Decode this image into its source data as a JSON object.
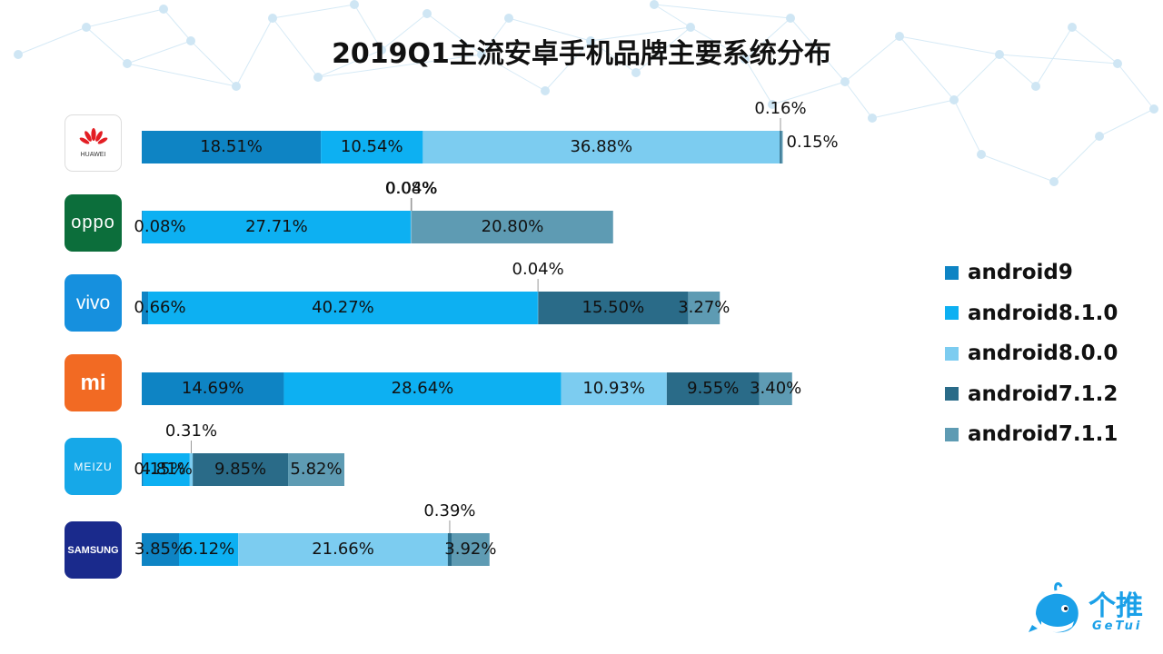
{
  "title": "2019Q1主流安卓手机品牌主要系统分布",
  "colors": {
    "android9": "#0e84c4",
    "android8.1.0": "#0db0f2",
    "android8.0.0": "#7cccf0",
    "android7.1.2": "#2a6b88",
    "android7.1.1": "#5e9bb3"
  },
  "brands": [
    {
      "name": "HUAWEI",
      "logo_text": "HUAWEI",
      "logo_bg": "#ffffff",
      "icon": "huawei-logo"
    },
    {
      "name": "OPPO",
      "logo_text": "oppo",
      "logo_bg": "#0c6e3b",
      "icon": "oppo-logo"
    },
    {
      "name": "VIVO",
      "logo_text": "vivo",
      "logo_bg": "#1690de",
      "icon": "vivo-logo"
    },
    {
      "name": "MI",
      "logo_text": "mi",
      "logo_bg": "#f26a23",
      "icon": "xiaomi-logo"
    },
    {
      "name": "MEIZU",
      "logo_text": "MEIZU",
      "logo_bg": "#16a8e8",
      "icon": "meizu-logo"
    },
    {
      "name": "SAMSUNG",
      "logo_text": "SAMSUNG",
      "logo_bg": "#1a2a8c",
      "icon": "samsung-logo"
    }
  ],
  "chart_data": {
    "type": "bar",
    "orientation": "horizontal",
    "stacked": true,
    "title": "2019Q1主流安卓手机品牌主要系统分布",
    "categories": [
      "HUAWEI",
      "OPPO",
      "VIVO",
      "MI",
      "MEIZU",
      "SAMSUNG"
    ],
    "series": [
      {
        "name": "android9",
        "values": [
          18.51,
          0.08,
          0.66,
          14.69,
          0.15,
          3.85
        ]
      },
      {
        "name": "android8.1.0",
        "values": [
          10.54,
          27.71,
          40.27,
          28.64,
          4.81,
          6.12
        ]
      },
      {
        "name": "android8.0.0",
        "values": [
          36.88,
          0.08,
          0.04,
          10.93,
          0.31,
          21.66
        ]
      },
      {
        "name": "android7.1.2",
        "values": [
          0.16,
          0.04,
          15.5,
          9.55,
          9.85,
          0.39
        ]
      },
      {
        "name": "android7.1.1",
        "values": [
          0.15,
          20.8,
          3.27,
          3.4,
          5.82,
          3.92
        ]
      }
    ],
    "value_labels": [
      [
        "18.51%",
        "10.54%",
        "36.88%",
        "0.16%",
        "0.15%"
      ],
      [
        "0.08%",
        "27.71%",
        "0.08%",
        "0.04%",
        "20.80%"
      ],
      [
        "0.66%",
        "40.27%",
        "0.04%",
        "15.50%",
        "3.27%"
      ],
      [
        "14.69%",
        "28.64%",
        "10.93%",
        "9.55%",
        "3.40%"
      ],
      [
        "0.15%",
        "4.81%",
        "0.31%",
        "9.85%",
        "5.82%"
      ],
      [
        "3.85%",
        "6.12%",
        "21.66%",
        "0.39%",
        "3.92%"
      ]
    ],
    "legend": "right",
    "grid": false
  },
  "footer_logo": {
    "cn": "个推",
    "en": "GeTui"
  }
}
